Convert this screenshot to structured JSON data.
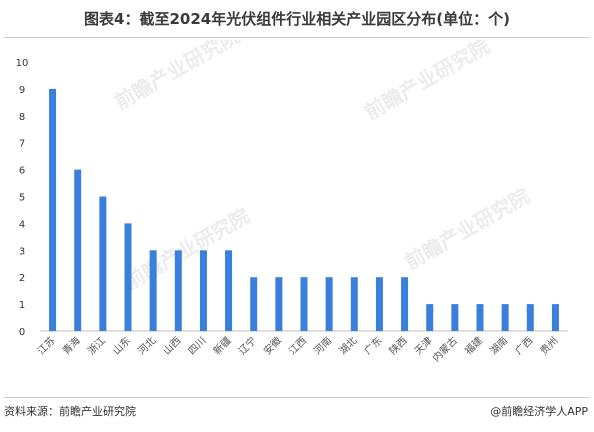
{
  "title": "图表4：截至2024年光伏组件行业相关产业园区分布(单位：个)",
  "source": "资料来源：前瞻产业研究院",
  "brand": "@前瞻经济学人APP",
  "watermark": "前瞻产业研究院",
  "chart_data": {
    "type": "bar",
    "categories": [
      "江苏",
      "青海",
      "浙江",
      "山东",
      "河北",
      "山西",
      "四川",
      "新疆",
      "辽宁",
      "安徽",
      "江西",
      "河南",
      "湖北",
      "广东",
      "陕西",
      "天津",
      "内蒙古",
      "福建",
      "湖南",
      "广西",
      "贵州"
    ],
    "values": [
      9,
      6,
      5,
      4,
      3,
      3,
      3,
      3,
      2,
      2,
      2,
      2,
      2,
      2,
      2,
      1,
      1,
      1,
      1,
      1,
      1
    ],
    "ylim": [
      0,
      10
    ],
    "yticks": [
      0,
      1,
      2,
      3,
      4,
      5,
      6,
      7,
      8,
      9,
      10
    ],
    "grid": false,
    "bar_color": "#3a7fdb",
    "xlabel": "",
    "ylabel": ""
  }
}
